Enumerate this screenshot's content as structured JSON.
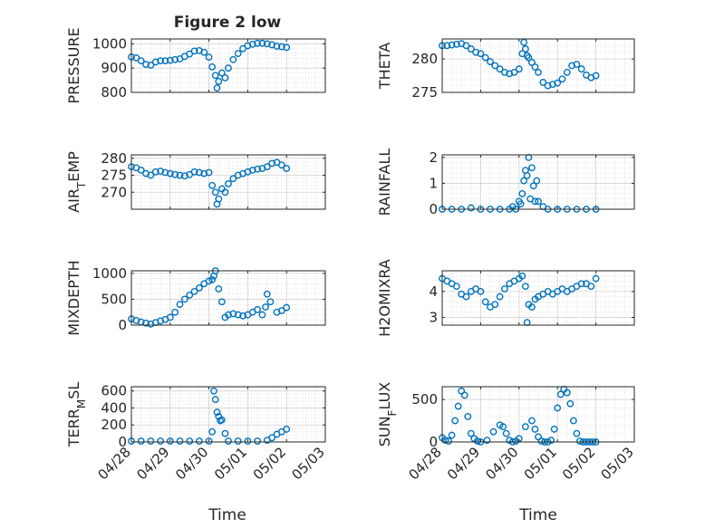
{
  "figure": {
    "title": "Figure 2 low",
    "xlabel": "Time",
    "background": "#ffffff",
    "marker_color": "#0072BD",
    "axis_color": "#262626",
    "grid_color": "#d0d0d0"
  },
  "chart_data": [
    {
      "type": "scatter",
      "id": "pressure",
      "title": "Figure 2 low",
      "ylabel": "PRESSURE",
      "ylim": [
        800,
        1020
      ],
      "yticks": [
        800,
        900,
        1000
      ],
      "xlim": [
        "04/28",
        "05/03"
      ],
      "xticks": [
        "04/28",
        "04/29",
        "04/30",
        "05/01",
        "05/02",
        "05/03"
      ],
      "xlabel": "",
      "grid": true,
      "x": [
        "04/28 00:00",
        "04/28 03:00",
        "04/28 06:00",
        "04/28 09:00",
        "04/28 12:00",
        "04/28 15:00",
        "04/28 18:00",
        "04/28 21:00",
        "04/29 00:00",
        "04/29 03:00",
        "04/29 06:00",
        "04/29 09:00",
        "04/29 12:00",
        "04/29 15:00",
        "04/29 18:00",
        "04/29 21:00",
        "04/30 00:00",
        "04/30 02:00",
        "04/30 04:00",
        "04/30 05:00",
        "04/30 06:00",
        "04/30 08:00",
        "04/30 10:00",
        "04/30 12:00",
        "04/30 15:00",
        "04/30 18:00",
        "04/30 21:00",
        "05/01 00:00",
        "05/01 03:00",
        "05/01 06:00",
        "05/01 09:00",
        "05/01 12:00",
        "05/01 15:00",
        "05/01 18:00",
        "05/01 21:00",
        "05/02 00:00"
      ],
      "y": [
        946,
        942,
        930,
        915,
        912,
        925,
        930,
        930,
        932,
        935,
        938,
        948,
        958,
        970,
        972,
        965,
        945,
        905,
        870,
        818,
        845,
        880,
        860,
        900,
        935,
        960,
        980,
        992,
        998,
        1002,
        1002,
        1000,
        996,
        990,
        988,
        985
      ]
    },
    {
      "type": "scatter",
      "id": "theta",
      "ylabel": "THETA",
      "ylim": [
        275,
        283
      ],
      "yticks": [
        275,
        280
      ],
      "xlim": [
        "04/28",
        "05/03"
      ],
      "xticks": [
        "04/28",
        "04/29",
        "04/30",
        "05/01",
        "05/02",
        "05/03"
      ],
      "xlabel": "",
      "grid": true,
      "x": [
        "04/28 00:00",
        "04/28 03:00",
        "04/28 06:00",
        "04/28 09:00",
        "04/28 12:00",
        "04/28 15:00",
        "04/28 18:00",
        "04/28 21:00",
        "04/29 00:00",
        "04/29 03:00",
        "04/29 06:00",
        "04/29 09:00",
        "04/29 12:00",
        "04/29 15:00",
        "04/29 18:00",
        "04/29 21:00",
        "04/30 00:00",
        "04/30 02:00",
        "04/30 03:00",
        "04/30 04:00",
        "04/30 05:00",
        "04/30 06:00",
        "04/30 08:00",
        "04/30 10:00",
        "04/30 12:00",
        "04/30 15:00",
        "04/30 18:00",
        "04/30 21:00",
        "05/01 00:00",
        "05/01 03:00",
        "05/01 06:00",
        "05/01 09:00",
        "05/01 12:00",
        "05/01 15:00",
        "05/01 18:00",
        "05/01 21:00",
        "05/02 00:00"
      ],
      "y": [
        282.0,
        282.0,
        282.1,
        282.2,
        282.3,
        282.0,
        281.5,
        281.0,
        280.8,
        280.2,
        279.6,
        279.0,
        278.5,
        278.0,
        277.8,
        278.0,
        278.5,
        280.8,
        282.5,
        281.5,
        280.5,
        280.2,
        279.5,
        278.8,
        278.0,
        276.5,
        276.0,
        276.2,
        276.4,
        277.0,
        278.0,
        279.0,
        279.2,
        278.5,
        277.6,
        277.2,
        277.5
      ]
    },
    {
      "type": "scatter",
      "id": "air_temp",
      "ylabel": "AIR_TEMP",
      "ylim": [
        265,
        281
      ],
      "yticks": [
        270,
        275,
        280
      ],
      "xlim": [
        "04/28",
        "05/03"
      ],
      "xticks": [
        "04/28",
        "04/29",
        "04/30",
        "05/01",
        "05/02",
        "05/03"
      ],
      "xlabel": "",
      "grid": true,
      "x": [
        "04/28 00:00",
        "04/28 03:00",
        "04/28 06:00",
        "04/28 09:00",
        "04/28 12:00",
        "04/28 15:00",
        "04/28 18:00",
        "04/28 21:00",
        "04/29 00:00",
        "04/29 03:00",
        "04/29 06:00",
        "04/29 09:00",
        "04/29 12:00",
        "04/29 15:00",
        "04/29 18:00",
        "04/29 21:00",
        "04/30 00:00",
        "04/30 02:00",
        "04/30 04:00",
        "04/30 05:00",
        "04/30 06:00",
        "04/30 08:00",
        "04/30 10:00",
        "04/30 12:00",
        "04/30 15:00",
        "04/30 18:00",
        "04/30 21:00",
        "05/01 00:00",
        "05/01 03:00",
        "05/01 06:00",
        "05/01 09:00",
        "05/01 12:00",
        "05/01 15:00",
        "05/01 18:00",
        "05/01 21:00",
        "05/02 00:00"
      ],
      "y": [
        277.5,
        277.2,
        276.5,
        275.5,
        275.0,
        276.0,
        276.2,
        275.8,
        275.5,
        275.2,
        275.0,
        274.8,
        275.2,
        276.0,
        275.8,
        275.5,
        275.8,
        272.0,
        270.0,
        266.5,
        268.0,
        271.0,
        270.0,
        272.5,
        274.0,
        275.0,
        275.5,
        276.0,
        276.5,
        276.8,
        277.0,
        277.5,
        278.5,
        278.8,
        278.0,
        277.0
      ]
    },
    {
      "type": "scatter",
      "id": "rainfall",
      "ylabel": "RAINFALL",
      "ylim": [
        0,
        2.1
      ],
      "yticks": [
        0,
        1,
        2
      ],
      "xlim": [
        "04/28",
        "05/03"
      ],
      "xticks": [
        "04/28",
        "04/29",
        "04/30",
        "05/01",
        "05/02",
        "05/03"
      ],
      "xlabel": "",
      "grid": true,
      "x": [
        "04/28 00:00",
        "04/28 06:00",
        "04/28 12:00",
        "04/28 18:00",
        "04/29 00:00",
        "04/29 06:00",
        "04/29 12:00",
        "04/29 18:00",
        "04/29 20:00",
        "04/29 22:00",
        "04/30 00:00",
        "04/30 01:00",
        "04/30 02:00",
        "04/30 03:00",
        "04/30 04:00",
        "04/30 05:00",
        "04/30 06:00",
        "04/30 07:00",
        "04/30 08:00",
        "04/30 09:00",
        "04/30 10:00",
        "04/30 11:00",
        "04/30 12:00",
        "04/30 15:00",
        "04/30 18:00",
        "05/01 00:00",
        "05/01 06:00",
        "05/01 12:00",
        "05/01 18:00",
        "05/02 00:00"
      ],
      "y": [
        0,
        0,
        0,
        0.05,
        0,
        0,
        0,
        0,
        0.1,
        0,
        0.3,
        0.2,
        0.6,
        1.1,
        1.5,
        1.3,
        2.0,
        0.4,
        1.6,
        0.9,
        0.3,
        1.1,
        0.3,
        0.1,
        0,
        0,
        0,
        0,
        0,
        0
      ]
    },
    {
      "type": "scatter",
      "id": "mixdepth",
      "ylabel": "MIXDEPTH",
      "ylim": [
        0,
        1050
      ],
      "yticks": [
        0,
        500,
        1000
      ],
      "xlim": [
        "04/28",
        "05/03"
      ],
      "xticks": [
        "04/28",
        "04/29",
        "04/30",
        "05/01",
        "05/02",
        "05/03"
      ],
      "xlabel": "",
      "grid": true,
      "x": [
        "04/28 00:00",
        "04/28 03:00",
        "04/28 06:00",
        "04/28 09:00",
        "04/28 12:00",
        "04/28 15:00",
        "04/28 18:00",
        "04/28 21:00",
        "04/29 00:00",
        "04/29 03:00",
        "04/29 06:00",
        "04/29 09:00",
        "04/29 12:00",
        "04/29 15:00",
        "04/29 18:00",
        "04/29 21:00",
        "04/30 00:00",
        "04/30 02:00",
        "04/30 03:00",
        "04/30 04:00",
        "04/30 06:00",
        "04/30 08:00",
        "04/30 10:00",
        "04/30 12:00",
        "04/30 15:00",
        "04/30 18:00",
        "04/30 21:00",
        "05/01 00:00",
        "05/01 03:00",
        "05/01 06:00",
        "05/01 09:00",
        "05/01 11:00",
        "05/01 12:00",
        "05/01 14:00",
        "05/01 18:00",
        "05/01 21:00",
        "05/02 00:00"
      ],
      "y": [
        120,
        90,
        60,
        40,
        20,
        50,
        80,
        110,
        150,
        250,
        400,
        500,
        580,
        650,
        720,
        800,
        850,
        880,
        950,
        1050,
        700,
        450,
        150,
        200,
        220,
        200,
        180,
        200,
        250,
        300,
        200,
        350,
        600,
        450,
        250,
        280,
        340
      ]
    },
    {
      "type": "scatter",
      "id": "h2omixra",
      "ylabel": "H2OMIXRA",
      "ylim": [
        2.7,
        4.8
      ],
      "yticks": [
        3,
        4
      ],
      "xlim": [
        "04/28",
        "05/03"
      ],
      "xticks": [
        "04/28",
        "04/29",
        "04/30",
        "05/01",
        "05/02",
        "05/03"
      ],
      "xlabel": "",
      "grid": true,
      "x": [
        "04/28 00:00",
        "04/28 03:00",
        "04/28 06:00",
        "04/28 09:00",
        "04/28 12:00",
        "04/28 15:00",
        "04/28 18:00",
        "04/28 21:00",
        "04/29 00:00",
        "04/29 03:00",
        "04/29 06:00",
        "04/29 09:00",
        "04/29 12:00",
        "04/29 15:00",
        "04/29 18:00",
        "04/29 21:00",
        "04/30 00:00",
        "04/30 02:00",
        "04/30 04:00",
        "04/30 05:00",
        "04/30 06:00",
        "04/30 08:00",
        "04/30 10:00",
        "04/30 12:00",
        "04/30 15:00",
        "04/30 18:00",
        "04/30 21:00",
        "05/01 00:00",
        "05/01 03:00",
        "05/01 06:00",
        "05/01 09:00",
        "05/01 12:00",
        "05/01 15:00",
        "05/01 18:00",
        "05/01 21:00",
        "05/02 00:00"
      ],
      "y": [
        4.5,
        4.4,
        4.3,
        4.2,
        3.9,
        3.8,
        4.0,
        4.1,
        4.0,
        3.6,
        3.4,
        3.5,
        3.8,
        4.1,
        4.3,
        4.4,
        4.5,
        4.6,
        4.2,
        2.8,
        3.5,
        3.4,
        3.7,
        3.8,
        3.9,
        4.0,
        3.9,
        4.0,
        4.1,
        4.0,
        4.1,
        4.2,
        4.3,
        4.3,
        4.2,
        4.5
      ]
    },
    {
      "type": "scatter",
      "id": "terr_msl",
      "ylabel": "TERR_MSL",
      "ylim": [
        0,
        650
      ],
      "yticks": [
        0,
        200,
        400,
        600
      ],
      "xlim": [
        "04/28",
        "05/03"
      ],
      "xticks": [
        "04/28",
        "04/29",
        "04/30",
        "05/01",
        "05/02",
        "05/03"
      ],
      "xlabel": "",
      "grid": true,
      "x": [
        "04/28 00:00",
        "04/28 06:00",
        "04/28 12:00",
        "04/28 18:00",
        "04/29 00:00",
        "04/29 06:00",
        "04/29 12:00",
        "04/29 18:00",
        "04/30 00:00",
        "04/30 02:00",
        "04/30 03:00",
        "04/30 04:00",
        "04/30 05:00",
        "04/30 06:00",
        "04/30 07:00",
        "04/30 08:00",
        "04/30 10:00",
        "04/30 12:00",
        "04/30 18:00",
        "05/01 00:00",
        "05/01 06:00",
        "05/01 12:00",
        "05/01 15:00",
        "05/01 18:00",
        "05/01 21:00",
        "05/02 00:00"
      ],
      "y": [
        10,
        10,
        10,
        10,
        10,
        10,
        10,
        10,
        10,
        120,
        600,
        500,
        350,
        300,
        250,
        260,
        100,
        10,
        10,
        10,
        10,
        20,
        50,
        90,
        120,
        150
      ]
    },
    {
      "type": "scatter",
      "id": "sun_flux",
      "ylabel": "SUN_FLUX",
      "ylim": [
        0,
        650
      ],
      "yticks": [
        0,
        500
      ],
      "xlim": [
        "04/28",
        "05/03"
      ],
      "xticks": [
        "04/28",
        "04/29",
        "04/30",
        "05/01",
        "05/02",
        "05/03"
      ],
      "xlabel": "Time",
      "grid": true,
      "x": [
        "04/28 00:00",
        "04/28 02:00",
        "04/28 04:00",
        "04/28 06:00",
        "04/28 08:00",
        "04/28 10:00",
        "04/28 12:00",
        "04/28 14:00",
        "04/28 16:00",
        "04/28 18:00",
        "04/28 20:00",
        "04/28 22:00",
        "04/29 00:00",
        "04/29 04:00",
        "04/29 08:00",
        "04/29 12:00",
        "04/29 14:00",
        "04/29 16:00",
        "04/29 18:00",
        "04/29 20:00",
        "04/29 22:00",
        "04/30 00:00",
        "04/30 04:00",
        "04/30 08:00",
        "04/30 10:00",
        "04/30 12:00",
        "04/30 14:00",
        "04/30 16:00",
        "04/30 18:00",
        "04/30 20:00",
        "04/30 22:00",
        "05/01 00:00",
        "05/01 02:00",
        "05/01 04:00",
        "05/01 06:00",
        "05/01 08:00",
        "05/01 10:00",
        "05/01 12:00",
        "05/01 14:00",
        "05/01 16:00",
        "05/01 18:00",
        "05/01 20:00",
        "05/01 22:00",
        "05/02 00:00"
      ],
      "y": [
        50,
        20,
        10,
        80,
        250,
        420,
        600,
        550,
        300,
        100,
        40,
        10,
        0,
        20,
        120,
        200,
        180,
        100,
        20,
        0,
        10,
        40,
        180,
        250,
        150,
        60,
        10,
        0,
        0,
        20,
        150,
        400,
        560,
        620,
        580,
        450,
        250,
        100,
        10,
        0,
        0,
        0,
        0,
        0
      ]
    }
  ]
}
